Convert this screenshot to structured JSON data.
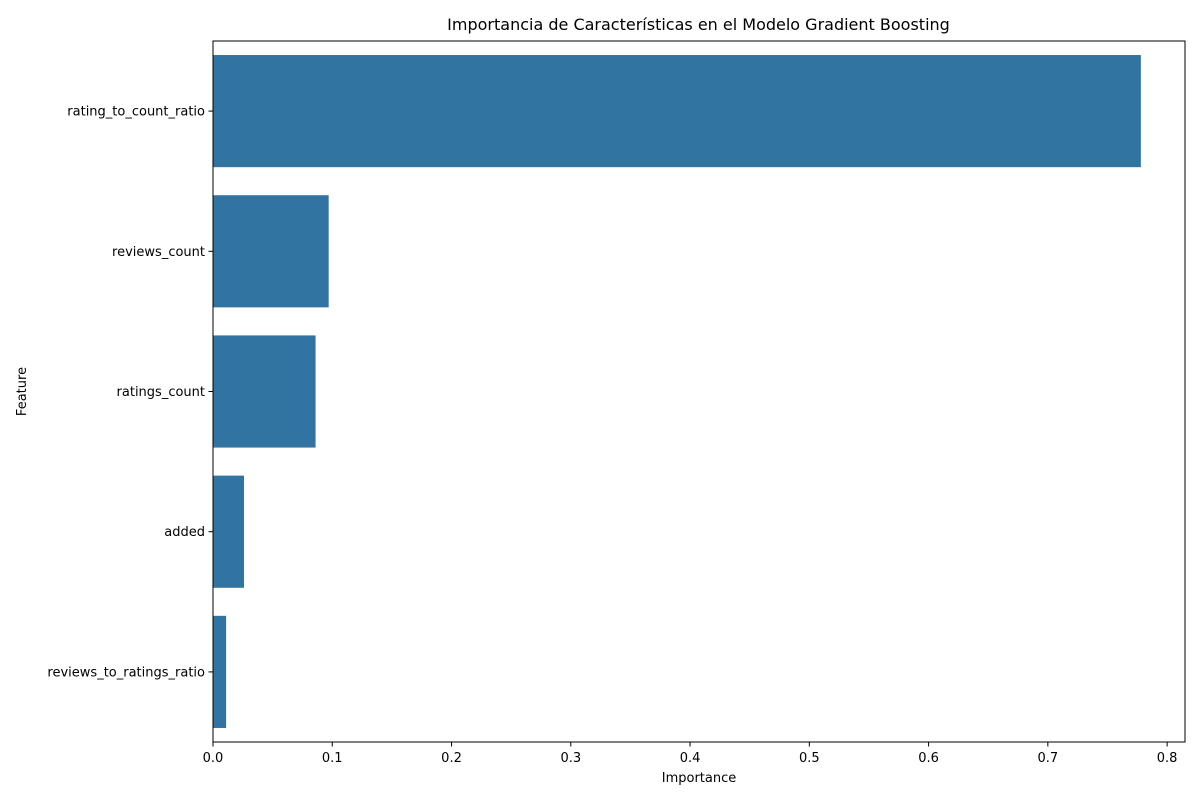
{
  "chart_data": {
    "type": "bar",
    "orientation": "horizontal",
    "title": "Importancia de Características en el Modelo Gradient Boosting",
    "xlabel": "Importance",
    "ylabel": "Feature",
    "categories": [
      "rating_to_count_ratio",
      "reviews_count",
      "ratings_count",
      "added",
      "reviews_to_ratings_ratio"
    ],
    "values": [
      0.778,
      0.097,
      0.086,
      0.026,
      0.011
    ],
    "xlim": [
      0,
      0.815
    ],
    "xticks": [
      0,
      0.1,
      0.2,
      0.3,
      0.4,
      0.5,
      0.6,
      0.7,
      0.8
    ],
    "xtick_labels": [
      "0.0",
      "0.1",
      "0.2",
      "0.3",
      "0.4",
      "0.5",
      "0.6",
      "0.7",
      "0.8"
    ],
    "bar_color": "#3274a1",
    "grid": false
  }
}
